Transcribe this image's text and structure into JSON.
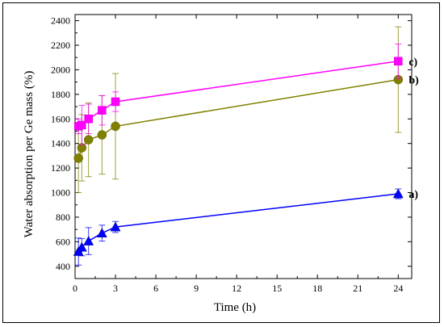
{
  "chart_data": {
    "type": "line",
    "xlabel": "Time (h)",
    "ylabel": "Water absorption per Ge mass (%)",
    "xlim": [
      0,
      25
    ],
    "ylim": [
      300,
      2450
    ],
    "xticks": [
      0,
      3,
      6,
      9,
      12,
      15,
      18,
      21,
      24
    ],
    "yticks": [
      400,
      600,
      800,
      1000,
      1200,
      1400,
      1600,
      1800,
      2000,
      2200,
      2400
    ],
    "grid": false,
    "series": [
      {
        "name": "a)",
        "color": "#0000ff",
        "marker": "triangle",
        "points": [
          {
            "x": 0.25,
            "y": 520,
            "err": 110
          },
          {
            "x": 0.5,
            "y": 555,
            "err": 70
          },
          {
            "x": 1,
            "y": 605,
            "err": 110
          },
          {
            "x": 2,
            "y": 670,
            "err": 65
          },
          {
            "x": 3,
            "y": 720,
            "err": 45
          },
          {
            "x": 24,
            "y": 990,
            "err": 40
          }
        ]
      },
      {
        "name": "b)",
        "color": "#808000",
        "marker": "circle",
        "points": [
          {
            "x": 0.25,
            "y": 1280,
            "err": 280
          },
          {
            "x": 0.5,
            "y": 1365,
            "err": 270
          },
          {
            "x": 1,
            "y": 1430,
            "err": 300
          },
          {
            "x": 2,
            "y": 1470,
            "err": 320
          },
          {
            "x": 3,
            "y": 1540,
            "err": 430
          },
          {
            "x": 24,
            "y": 1920,
            "err": 430
          }
        ]
      },
      {
        "name": "c)",
        "color": "#ff00ff",
        "marker": "square",
        "points": [
          {
            "x": 0.25,
            "y": 1540,
            "err": 60
          },
          {
            "x": 0.5,
            "y": 1550,
            "err": 160
          },
          {
            "x": 1,
            "y": 1600,
            "err": 120
          },
          {
            "x": 2,
            "y": 1670,
            "err": 120
          },
          {
            "x": 3,
            "y": 1740,
            "err": 80
          },
          {
            "x": 24,
            "y": 2070,
            "err": 140
          }
        ]
      }
    ]
  }
}
